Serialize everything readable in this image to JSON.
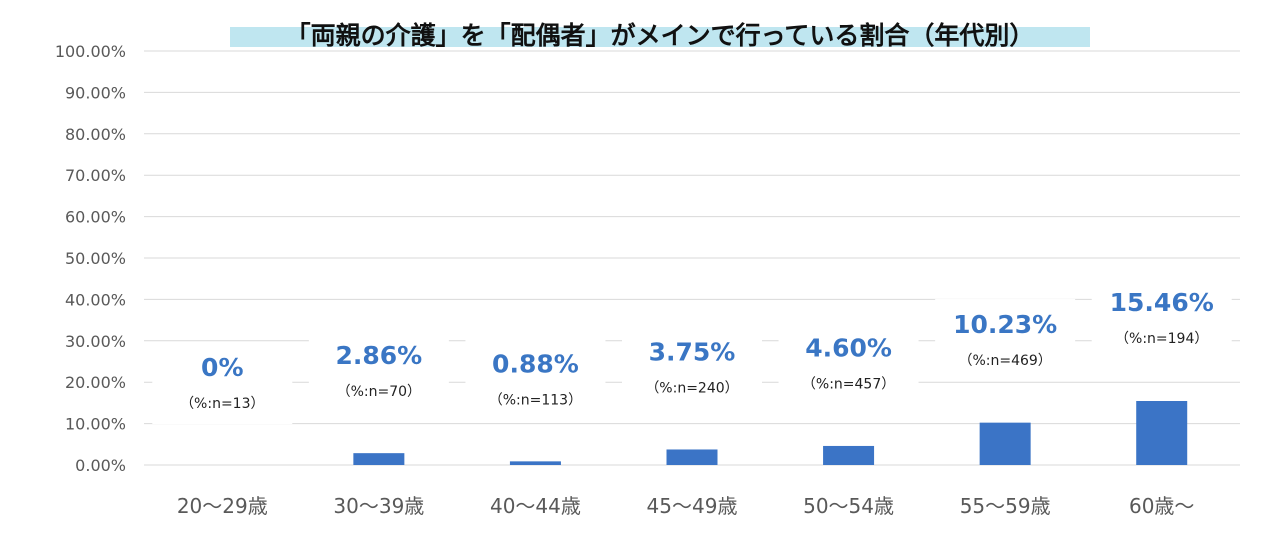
{
  "chart_data": {
    "type": "bar",
    "title": "「両親の介護」を「配偶者」がメインで行っている割合（年代別）",
    "categories": [
      "20～29歳",
      "30～39歳",
      "40～44歳",
      "45～49歳",
      "50～54歳",
      "55～59歳",
      "60歳～"
    ],
    "values": [
      0,
      2.86,
      0.88,
      3.75,
      4.6,
      10.23,
      15.46
    ],
    "value_labels": [
      "0%",
      "2.86%",
      "0.88%",
      "3.75%",
      "4.60%",
      "10.23%",
      "15.46%"
    ],
    "n_labels": [
      "（%:n=13）",
      "（%:n=70）",
      "（%:n=113）",
      "（%:n=240）",
      "（%:n=457）",
      "（%:n=469）",
      "（%:n=194）"
    ],
    "ylim": [
      0,
      100
    ],
    "yticks": [
      "0.00%",
      "10.00%",
      "20.00%",
      "30.00%",
      "40.00%",
      "50.00%",
      "60.00%",
      "70.00%",
      "80.00%",
      "90.00%",
      "100.00%"
    ],
    "grid": true,
    "colors": {
      "bar": "#3b74c6",
      "value_label": "#3a76c4",
      "title_bg": "#bfe6f0"
    }
  }
}
